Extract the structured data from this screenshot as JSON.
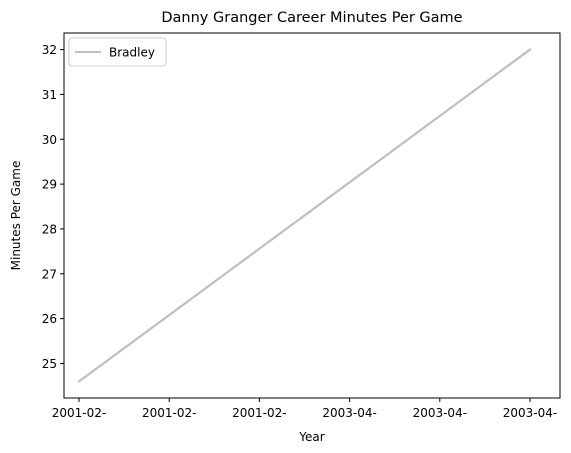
{
  "chart_data": {
    "type": "line",
    "title": "Danny Granger Career Minutes Per Game",
    "xlabel": "Year",
    "ylabel": "Minutes Per Game",
    "x_tick_labels": [
      "2001-02-",
      "2001-02-",
      "2001-02-",
      "2003-04-",
      "2003-04-",
      "2003-04-"
    ],
    "y_ticks": [
      "25",
      "26",
      "27",
      "28",
      "29",
      "30",
      "31",
      "32"
    ],
    "ylim": [
      24.23,
      32.37
    ],
    "legend_position": "upper-left",
    "grid": false,
    "series": [
      {
        "name": "Bradley",
        "color": "#bfbfbf",
        "points": [
          {
            "x": "2001-02",
            "y": 24.6
          },
          {
            "x": "2003-04",
            "y": 32.0
          }
        ]
      }
    ]
  }
}
